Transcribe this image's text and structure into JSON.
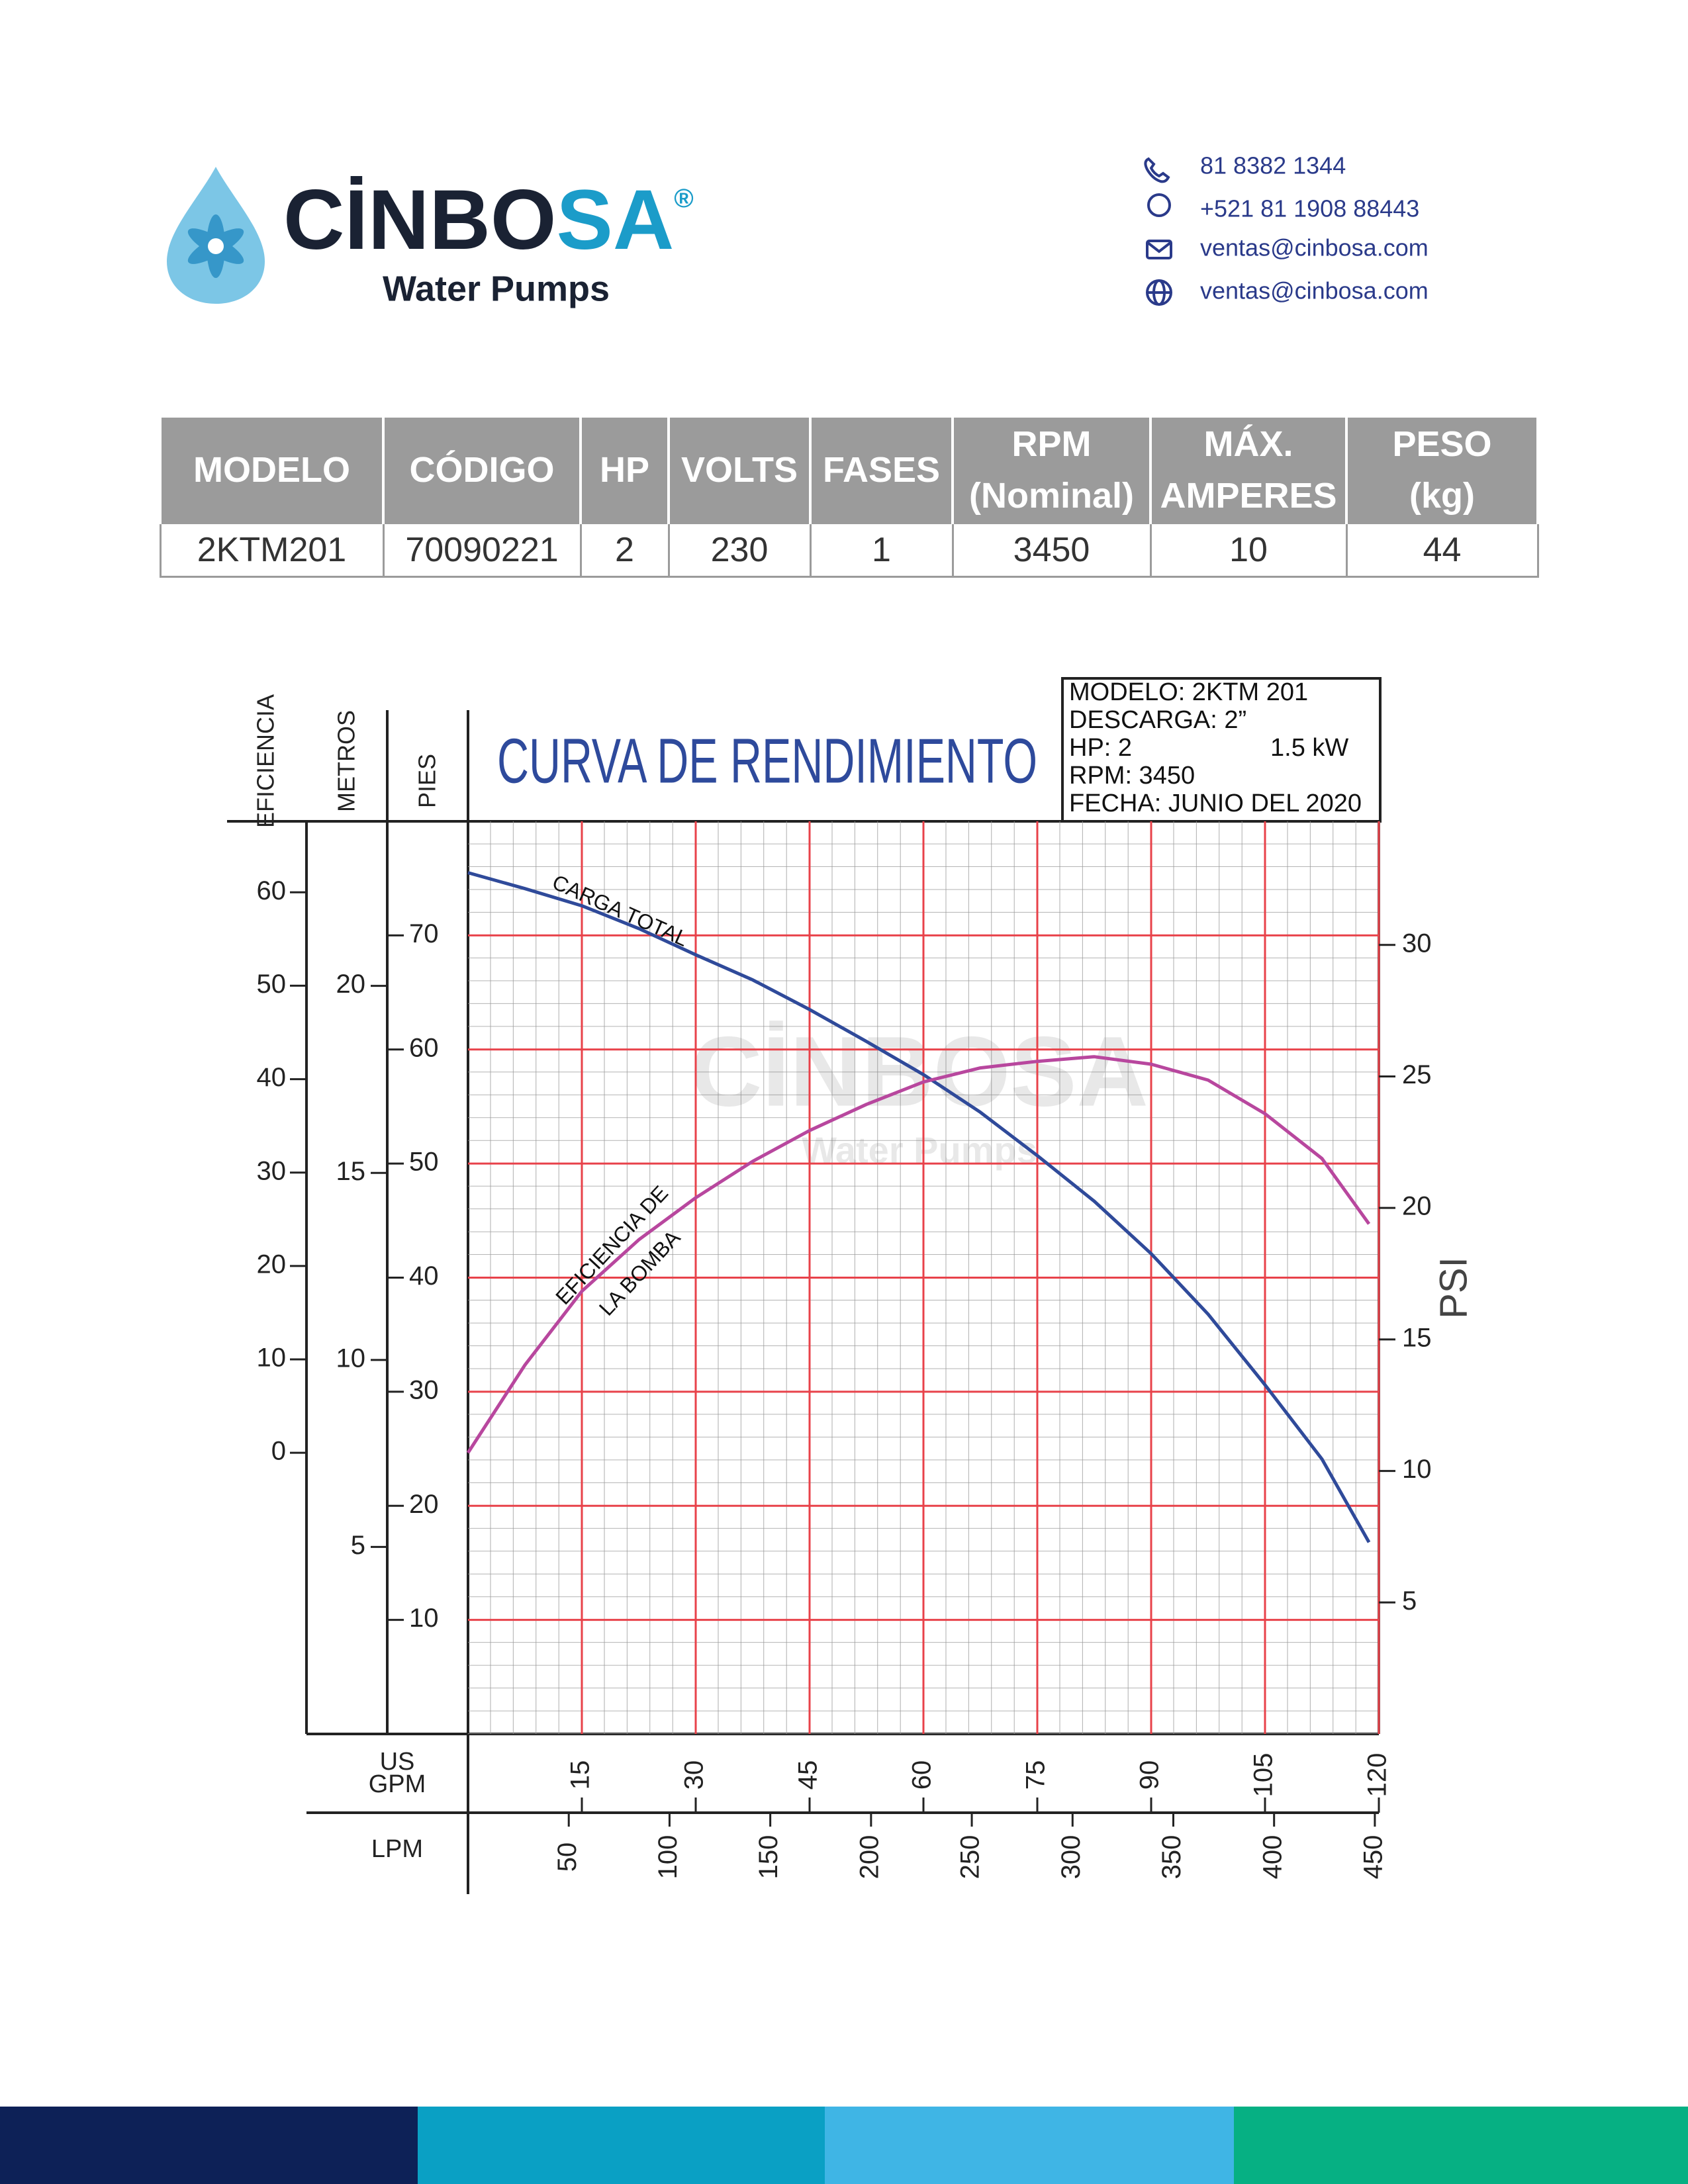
{
  "header": {
    "brand": [
      "CİNBO",
      "SA"
    ],
    "registered": "®",
    "tagline": "Water Pumps",
    "contacts": [
      "81 8382 1344",
      "+521 81 1908 88443",
      "ventas@cinbosa.com",
      "ventas@cinbosa.com"
    ]
  },
  "table": {
    "headers": [
      [
        "MODELO"
      ],
      [
        "CÓDIGO"
      ],
      [
        "HP"
      ],
      [
        "VOLTS"
      ],
      [
        "FASES"
      ],
      [
        "RPM",
        "(Nominal)"
      ],
      [
        "MÁX.",
        "AMPERES"
      ],
      [
        "PESO",
        "(kg)"
      ]
    ],
    "rows": [
      [
        "2KTM201",
        "70090221",
        "2",
        "230",
        "1",
        "3450",
        "10",
        "44"
      ]
    ]
  },
  "chart_data": {
    "type": "line",
    "title": "CURVA DE RENDIMIENTO",
    "info": [
      [
        "MODELO: 2KTM 201"
      ],
      [
        "DESCARGA: 2”"
      ],
      [
        "HP: 2",
        "1.5 kW"
      ],
      [
        "RPM: 3450"
      ],
      [
        "FECHA: JUNIO DEL 2020"
      ]
    ],
    "watermark": [
      "CİNBOSA",
      "Water Pumps"
    ],
    "x_label": [
      "US",
      "GPM"
    ],
    "xlim": [
      0,
      120
    ],
    "xticks": [
      15,
      30,
      45,
      60,
      75,
      90,
      105,
      120
    ],
    "x2": {
      "label": "LPM",
      "xlim": [
        0,
        452
      ],
      "xticks": [
        50,
        100,
        150,
        200,
        250,
        300,
        350,
        400,
        450
      ]
    },
    "y_axes": [
      {
        "label": "EFICIENCIA",
        "ylim": [
          -30.1,
          67.6
        ],
        "yticks": [
          0,
          10,
          20,
          30,
          40,
          50,
          60
        ]
      },
      {
        "label": "METROS",
        "ylim": [
          0,
          24.4
        ],
        "yticks": [
          5,
          10,
          15,
          20
        ]
      },
      {
        "label": "PIES",
        "ylim": [
          0,
          80
        ],
        "yticks": [
          10,
          20,
          30,
          40,
          50,
          60,
          70
        ]
      },
      {
        "label": "PSI",
        "ylim": [
          0,
          34.7
        ],
        "yticks": [
          5,
          10,
          15,
          20,
          25,
          30
        ]
      }
    ],
    "grid": true,
    "grid_color": "#e8424a",
    "x": [
      0,
      7.5,
      15,
      22.5,
      30,
      37.5,
      45,
      52.5,
      60,
      67.5,
      75,
      82.5,
      90,
      97.5,
      105,
      112.5,
      118.7
    ],
    "series": [
      {
        "label": [
          "CARGA TOTAL"
        ],
        "axis": 2,
        "color": "#2f4a9a",
        "values": [
          75.5,
          74.1,
          72.6,
          70.6,
          68.3,
          66.1,
          63.5,
          60.7,
          57.8,
          54.5,
          50.7,
          46.7,
          42.1,
          36.8,
          30.6,
          24.1,
          16.8
        ]
      },
      {
        "label": [
          "EFICIENCIA DE",
          "LA BOMBA"
        ],
        "axis": 0,
        "color": "#b8479e",
        "values": [
          0,
          9.4,
          17.3,
          22.8,
          27.3,
          31.2,
          34.5,
          37.3,
          39.7,
          41.2,
          41.9,
          42.4,
          41.6,
          39.9,
          36.3,
          31.5,
          24.5
        ]
      }
    ]
  }
}
